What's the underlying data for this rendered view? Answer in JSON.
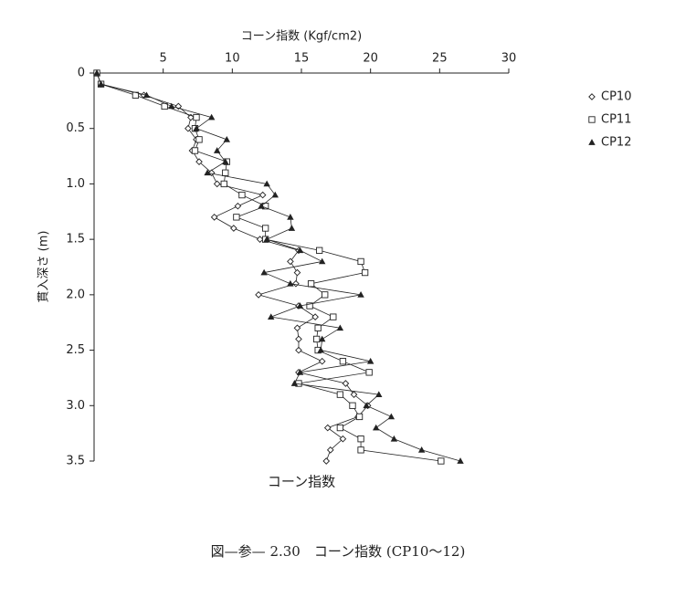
{
  "chart_data": {
    "type": "line",
    "x_label": "コーン指数 (Kgf/cm2)",
    "y_label": "貫入深さ (m)",
    "bottom_label": "コーン指数",
    "caption": "図—参— 2.30　コーン指数 (CP10〜12)",
    "xlim": [
      0,
      30
    ],
    "xticks": [
      5,
      10,
      15,
      20,
      25,
      30
    ],
    "ylim": [
      0,
      3.5
    ],
    "yticks": [
      0,
      0.5,
      {
        "value": 1,
        "label": "1.0"
      },
      1.5,
      {
        "value": 2,
        "label": "2.0"
      },
      2.5,
      {
        "value": 3,
        "label": "3.0"
      },
      3.5
    ],
    "y_inverted": true,
    "y": [
      0,
      0.1,
      0.2,
      0.3,
      0.4,
      0.5,
      0.6,
      0.7,
      0.8,
      0.9,
      1,
      1.1,
      1.2,
      1.3,
      1.4,
      1.5,
      1.6,
      1.7,
      1.8,
      1.9,
      2,
      2.1,
      2.2,
      2.3,
      2.4,
      2.5,
      2.6,
      2.7,
      2.8,
      2.9,
      3,
      3.1,
      3.2,
      3.3,
      3.4,
      3.5
    ],
    "series": [
      {
        "name": "CP10",
        "color": "#222",
        "marker": "diamond",
        "values": [
          0.2,
          0.5,
          3.6,
          6.1,
          7.0,
          6.8,
          7.4,
          7.1,
          7.6,
          8.5,
          8.9,
          12.2,
          10.4,
          8.7,
          10.1,
          12.0,
          14.8,
          14.2,
          14.7,
          14.6,
          11.9,
          14.8,
          16.0,
          14.7,
          14.8,
          14.8,
          16.5,
          14.8,
          18.2,
          18.8,
          19.8,
          19.1,
          16.9,
          18.0,
          17.1,
          16.8
        ]
      },
      {
        "name": "CP11",
        "color": "#222",
        "marker": "square",
        "values": [
          0.2,
          0.5,
          3.0,
          5.1,
          7.4,
          7.3,
          7.6,
          7.3,
          9.6,
          9.5,
          9.4,
          10.7,
          12.4,
          10.3,
          12.4,
          12.4,
          16.3,
          19.3,
          19.6,
          15.7,
          16.7,
          15.6,
          17.3,
          16.2,
          16.1,
          16.2,
          18.0,
          19.9,
          14.8,
          17.8,
          18.7,
          19.2,
          17.8,
          19.3,
          19.3,
          25.1
        ]
      },
      {
        "name": "CP12",
        "color": "#222",
        "marker": "triangle",
        "values": [
          0.2,
          0.5,
          3.8,
          5.6,
          8.5,
          7.4,
          9.6,
          8.9,
          9.5,
          8.2,
          12.5,
          13.1,
          12.1,
          14.2,
          14.3,
          12.5,
          14.9,
          16.5,
          12.3,
          14.2,
          19.3,
          14.9,
          12.8,
          17.8,
          16.5,
          16.4,
          20.0,
          14.9,
          14.5,
          20.6,
          19.7,
          21.5,
          20.4,
          21.7,
          23.7,
          26.5
        ]
      }
    ]
  }
}
